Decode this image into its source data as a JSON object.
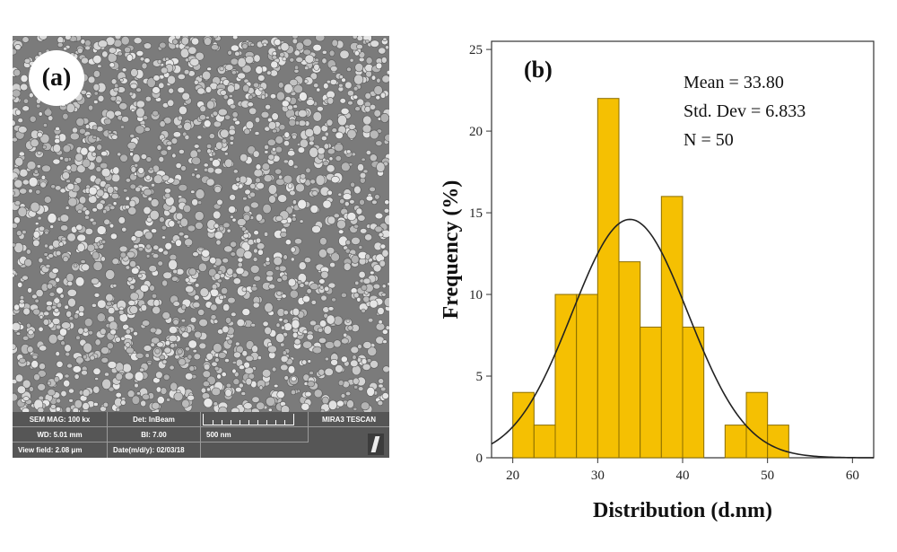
{
  "panel_a": {
    "label": "(a)",
    "info_bar": {
      "sem_mag": "SEM MAG: 100 kx",
      "det": "Det: InBeam",
      "brand": "MIRA3 TESCAN",
      "wd": "WD: 5.01 mm",
      "bi": "BI: 7.00",
      "scale": "500 nm",
      "view_field": "View field: 2.08 μm",
      "date": "Date(m/d/y): 02/03/18"
    }
  },
  "chart_data": {
    "type": "bar",
    "panel_label": "(b)",
    "title": "",
    "xlabel": "Distribution (d.nm)",
    "ylabel": "Frequency (%)",
    "xlim": [
      17.5,
      62.5
    ],
    "ylim": [
      0,
      25.5
    ],
    "xticks": [
      20,
      30,
      40,
      50,
      60
    ],
    "yticks": [
      0,
      5,
      10,
      15,
      20,
      25
    ],
    "bin_width": 2.5,
    "bins": [
      {
        "start": 20.0,
        "value": 4
      },
      {
        "start": 22.5,
        "value": 2
      },
      {
        "start": 25.0,
        "value": 10
      },
      {
        "start": 27.5,
        "value": 10
      },
      {
        "start": 30.0,
        "value": 22
      },
      {
        "start": 32.5,
        "value": 12
      },
      {
        "start": 35.0,
        "value": 8
      },
      {
        "start": 37.5,
        "value": 16
      },
      {
        "start": 40.0,
        "value": 8
      },
      {
        "start": 45.0,
        "value": 2
      },
      {
        "start": 47.5,
        "value": 4
      },
      {
        "start": 50.0,
        "value": 2
      }
    ],
    "stats": {
      "mean": "Mean = 33.80",
      "std": "Std. Dev = 6.833",
      "n": "N = 50"
    },
    "normal_curve": {
      "mean": 33.8,
      "std": 6.833
    },
    "colors": {
      "bar": "#f5c002",
      "bar_edge": "#8a6d00",
      "curve": "#222222"
    },
    "grid": false
  }
}
